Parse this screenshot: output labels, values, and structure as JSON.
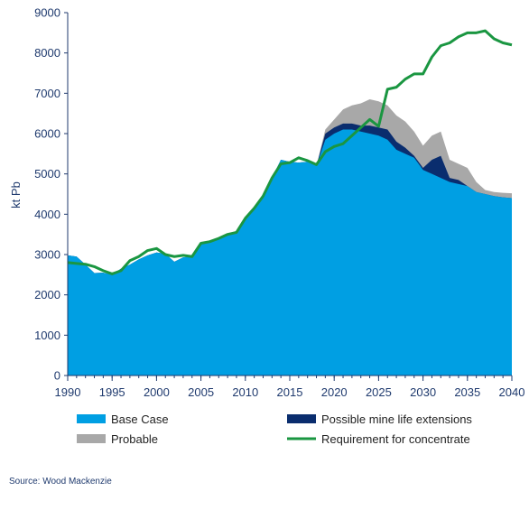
{
  "chart_data": {
    "type": "area",
    "title": "",
    "xlabel": "",
    "ylabel": "kt Pb",
    "xlim": [
      1990,
      2040
    ],
    "ylim": [
      0,
      9000
    ],
    "xticks": [
      1990,
      1995,
      2000,
      2005,
      2010,
      2015,
      2020,
      2025,
      2030,
      2035,
      2040
    ],
    "yticks": [
      0,
      1000,
      2000,
      3000,
      4000,
      5000,
      6000,
      7000,
      8000,
      9000
    ],
    "grid": false,
    "legend_position": "bottom",
    "years": [
      1990,
      1991,
      1992,
      1993,
      1994,
      1995,
      1996,
      1997,
      1998,
      1999,
      2000,
      2001,
      2002,
      2003,
      2004,
      2005,
      2006,
      2007,
      2008,
      2009,
      2010,
      2011,
      2012,
      2013,
      2014,
      2015,
      2016,
      2017,
      2018,
      2019,
      2020,
      2021,
      2022,
      2023,
      2024,
      2025,
      2026,
      2027,
      2028,
      2029,
      2030,
      2031,
      2032,
      2033,
      2034,
      2035,
      2036,
      2037,
      2038,
      2039,
      2040
    ],
    "series": [
      {
        "name": "Base Case",
        "kind": "area",
        "color": "#009fe3",
        "values": [
          2980,
          2950,
          2750,
          2540,
          2550,
          2500,
          2650,
          2750,
          2880,
          2980,
          3050,
          3020,
          2820,
          2930,
          2950,
          3300,
          3300,
          3380,
          3520,
          3580,
          3920,
          4150,
          4450,
          4900,
          5350,
          5300,
          5280,
          5300,
          5200,
          5850,
          6000,
          6100,
          6100,
          6050,
          6000,
          5950,
          5850,
          5600,
          5500,
          5400,
          5100,
          5000,
          4900,
          4800,
          4750,
          4700,
          4550,
          4500,
          4450,
          4420,
          4400
        ]
      },
      {
        "name": "Possible mine life extensions",
        "kind": "area",
        "color": "#0a2d6e",
        "values": [
          2980,
          2950,
          2750,
          2540,
          2550,
          2500,
          2650,
          2750,
          2880,
          2980,
          3050,
          3020,
          2820,
          2930,
          2950,
          3300,
          3300,
          3380,
          3520,
          3580,
          3920,
          4150,
          4450,
          4900,
          5350,
          5300,
          5280,
          5300,
          5200,
          6000,
          6150,
          6250,
          6250,
          6200,
          6200,
          6150,
          6100,
          5800,
          5650,
          5450,
          5150,
          5350,
          5450,
          4900,
          4850,
          4700,
          4550,
          4500,
          4450,
          4420,
          4400
        ]
      },
      {
        "name": "Probable",
        "kind": "area",
        "color": "#a8a8a8",
        "values": [
          2980,
          2950,
          2750,
          2540,
          2550,
          2500,
          2650,
          2750,
          2880,
          2980,
          3050,
          3020,
          2820,
          2930,
          2950,
          3300,
          3300,
          3380,
          3520,
          3580,
          3920,
          4150,
          4450,
          4900,
          5350,
          5300,
          5280,
          5300,
          5200,
          6100,
          6350,
          6600,
          6700,
          6750,
          6850,
          6800,
          6700,
          6450,
          6300,
          6050,
          5700,
          5950,
          6050,
          5350,
          5250,
          5150,
          4800,
          4600,
          4550,
          4530,
          4520
        ]
      },
      {
        "name": "Requirement for concentrate",
        "kind": "line",
        "color": "#1a9641",
        "values": [
          2800,
          2780,
          2760,
          2700,
          2600,
          2520,
          2600,
          2850,
          2950,
          3100,
          3150,
          3000,
          2950,
          2980,
          2950,
          3280,
          3320,
          3400,
          3500,
          3550,
          3900,
          4150,
          4450,
          4900,
          5250,
          5280,
          5400,
          5330,
          5230,
          5550,
          5680,
          5750,
          5950,
          6150,
          6350,
          6180,
          7100,
          7150,
          7350,
          7480,
          7480,
          7900,
          8180,
          8250,
          8400,
          8500,
          8500,
          8550,
          8350,
          8250,
          8200
        ]
      }
    ]
  },
  "source": "Source: Wood Mackenzie"
}
